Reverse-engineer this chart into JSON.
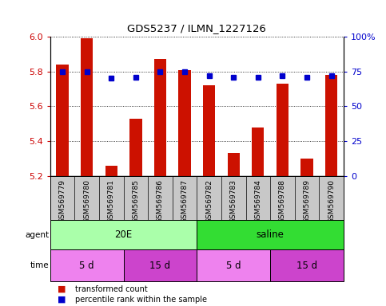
{
  "title": "GDS5237 / ILMN_1227126",
  "samples": [
    "GSM569779",
    "GSM569780",
    "GSM569781",
    "GSM569785",
    "GSM569786",
    "GSM569787",
    "GSM569782",
    "GSM569783",
    "GSM569784",
    "GSM569788",
    "GSM569789",
    "GSM569790"
  ],
  "transformed_counts": [
    5.84,
    5.99,
    5.26,
    5.53,
    5.87,
    5.81,
    5.72,
    5.33,
    5.48,
    5.73,
    5.3,
    5.78
  ],
  "percentile_ranks": [
    75,
    75,
    70,
    71,
    75,
    75,
    72,
    71,
    71,
    72,
    71,
    72
  ],
  "y_min": 5.2,
  "y_max": 6.0,
  "y_ticks": [
    5.2,
    5.4,
    5.6,
    5.8,
    6.0
  ],
  "right_y_ticks": [
    0,
    25,
    50,
    75,
    100
  ],
  "right_y_tick_labels": [
    "0",
    "25",
    "50",
    "75",
    "100%"
  ],
  "agent_groups": [
    {
      "label": "20E",
      "start": 0,
      "end": 5,
      "color": "#aaffaa"
    },
    {
      "label": "saline",
      "start": 6,
      "end": 11,
      "color": "#33dd33"
    }
  ],
  "time_groups": [
    {
      "label": "5 d",
      "start": 0,
      "end": 2,
      "color": "#ee82ee"
    },
    {
      "label": "15 d",
      "start": 3,
      "end": 5,
      "color": "#cc44cc"
    },
    {
      "label": "5 d",
      "start": 6,
      "end": 8,
      "color": "#ee82ee"
    },
    {
      "label": "15 d",
      "start": 9,
      "end": 11,
      "color": "#cc44cc"
    }
  ],
  "bar_color": "#cc1100",
  "dot_color": "#0000cc",
  "bar_width": 0.5,
  "tick_label_color_left": "#cc0000",
  "tick_label_color_right": "#0000cc",
  "plot_bg_color": "#ffffff",
  "sample_bg_color": "#c8c8c8"
}
